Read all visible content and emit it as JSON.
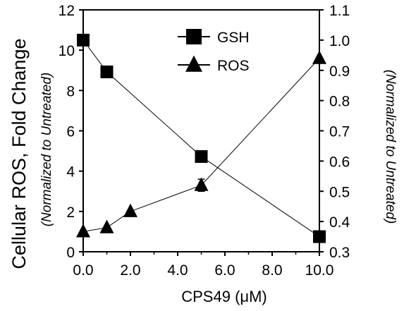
{
  "chart_data": {
    "type": "line",
    "xlabel": "CPS49 (μM)",
    "ylabel_left": "Cellular ROS, Fold Change",
    "ylabel_left_sub": "(Normalized to Untreated)",
    "ylabel_right_sub": "(Normalized to Untreated)",
    "xlim": [
      0,
      10
    ],
    "ylim_left": [
      0,
      12
    ],
    "ylim_right": [
      0.3,
      1.1
    ],
    "x_ticks": [
      "0.0",
      "2.0",
      "4.0",
      "6.0",
      "8.0",
      "10.0"
    ],
    "y_left_ticks": [
      "0",
      "2",
      "4",
      "6",
      "8",
      "10",
      "12"
    ],
    "y_right_ticks": [
      "0.3",
      "0.4",
      "0.5",
      "0.6",
      "0.7",
      "0.8",
      "0.9",
      "1.0",
      "1.1"
    ],
    "legend_position": "top-center",
    "grid": false,
    "series": [
      {
        "name": "GSH",
        "marker": "square",
        "axis": "right",
        "x": [
          0,
          1,
          5,
          10
        ],
        "y": [
          1.0,
          0.895,
          0.615,
          0.35
        ]
      },
      {
        "name": "ROS",
        "marker": "triangle",
        "axis": "left",
        "x": [
          0,
          1,
          2,
          5,
          10
        ],
        "y": [
          1.0,
          1.2,
          2.0,
          3.3,
          9.6
        ],
        "error": [
          0,
          0,
          0,
          0.3,
          0
        ]
      }
    ]
  }
}
